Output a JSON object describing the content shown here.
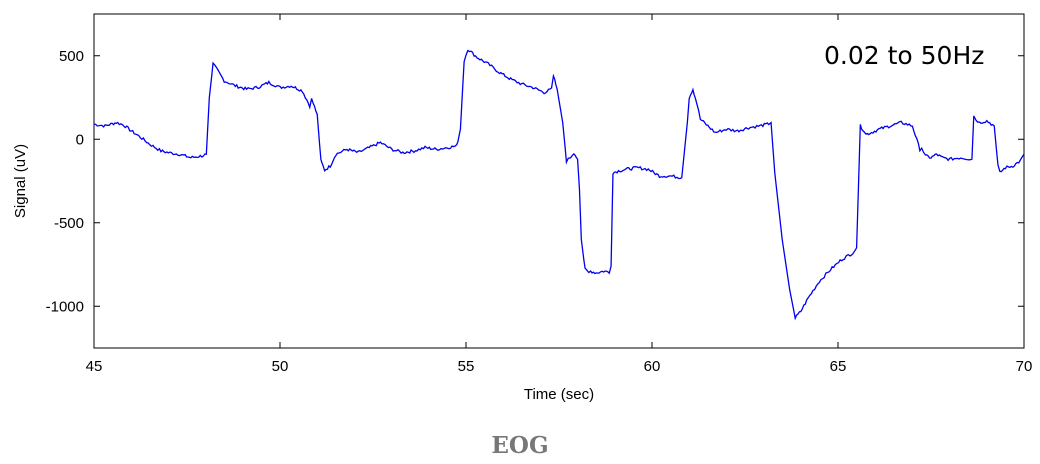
{
  "caption": "EOG",
  "colors": {
    "line": "#0000ee",
    "axis": "#000000",
    "caption": "#777777"
  },
  "chart_data": {
    "type": "line",
    "title": "",
    "xlabel": "Time (sec)",
    "ylabel": "Signal (uV)",
    "xlim": [
      45,
      70
    ],
    "ylim": [
      -1250,
      750
    ],
    "xticks": [
      45,
      50,
      55,
      60,
      65,
      70
    ],
    "yticks": [
      -1000,
      -500,
      0,
      500
    ],
    "grid": false,
    "annotation": "0.02 to 50Hz",
    "series": [
      {
        "x": [
          45.0,
          45.3,
          45.6,
          45.8,
          46.0,
          46.2,
          46.5,
          46.8,
          47.0,
          47.3,
          47.6,
          47.9,
          48.02,
          48.1,
          48.2,
          48.3,
          48.5,
          48.8,
          49.1,
          49.4,
          49.7,
          50.0,
          50.3,
          50.6,
          50.8,
          50.85,
          51.0,
          51.1,
          51.2,
          51.35,
          51.5,
          51.8,
          52.1,
          52.4,
          52.7,
          53.0,
          53.3,
          53.6,
          53.9,
          54.2,
          54.5,
          54.75,
          54.85,
          54.95,
          55.05,
          55.3,
          55.6,
          55.9,
          56.2,
          56.5,
          56.8,
          57.1,
          57.3,
          57.35,
          57.45,
          57.6,
          57.7,
          57.8,
          57.9,
          58.0,
          58.05,
          58.1,
          58.2,
          58.3,
          58.35,
          58.5,
          58.7,
          58.85,
          58.9,
          58.95,
          59.1,
          59.3,
          59.6,
          59.9,
          60.2,
          60.5,
          60.8,
          60.95,
          61.0,
          61.1,
          61.2,
          61.3,
          61.5,
          61.7,
          62.0,
          62.3,
          62.6,
          62.9,
          63.1,
          63.2,
          63.3,
          63.5,
          63.7,
          63.85,
          64.0,
          64.2,
          64.5,
          64.8,
          65.1,
          65.4,
          65.5,
          65.6,
          65.7,
          65.75,
          65.9,
          66.1,
          66.4,
          66.7,
          67.0,
          67.2,
          67.25,
          67.35,
          67.5,
          67.65,
          67.8,
          68.0,
          68.3,
          68.6,
          68.65,
          68.7,
          68.8,
          69.0,
          69.2,
          69.3,
          69.35,
          69.5,
          69.7,
          69.9,
          70.0
        ],
        "y": [
          90,
          80,
          100,
          85,
          50,
          20,
          -30,
          -70,
          -80,
          -90,
          -110,
          -100,
          -90,
          250,
          450,
          420,
          350,
          320,
          300,
          310,
          340,
          310,
          320,
          290,
          200,
          240,
          150,
          -130,
          -185,
          -160,
          -90,
          -60,
          -80,
          -50,
          -20,
          -60,
          -80,
          -70,
          -50,
          -60,
          -50,
          -40,
          60,
          470,
          540,
          490,
          450,
          400,
          360,
          330,
          310,
          280,
          300,
          380,
          300,
          100,
          -130,
          -110,
          -80,
          -120,
          -300,
          -600,
          -780,
          -800,
          -790,
          -800,
          -790,
          -795,
          -760,
          -200,
          -190,
          -180,
          -170,
          -180,
          -220,
          -220,
          -230,
          100,
          250,
          300,
          220,
          120,
          80,
          40,
          60,
          50,
          70,
          80,
          90,
          100,
          -200,
          -600,
          -900,
          -1070,
          -1030,
          -950,
          -850,
          -780,
          -720,
          -680,
          -650,
          80,
          50,
          30,
          40,
          60,
          80,
          100,
          80,
          -60,
          -50,
          -100,
          -110,
          -90,
          -110,
          -120,
          -110,
          -120,
          140,
          120,
          100,
          110,
          80,
          -160,
          -200,
          -170,
          -160,
          -130,
          -90
        ]
      }
    ]
  }
}
